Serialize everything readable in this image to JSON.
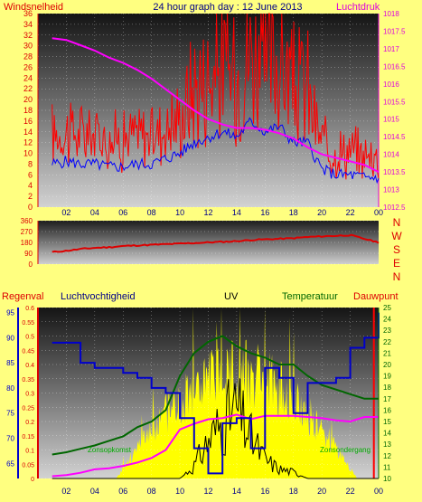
{
  "header": {
    "left_label": "Windsnelheid",
    "title": "24 hour graph day : 12 June 2013",
    "right_label": "Luchtdruk"
  },
  "colors": {
    "background": "#ffff80",
    "wind_avg": "#0000ff",
    "wind_gust": "#ff0000",
    "pressure": "#ff00ff",
    "direction": "#dd0000",
    "humidity": "#0000cc",
    "temperature": "#006600",
    "dewpoint": "#ff00ff",
    "uv": "#000000",
    "solar": "#ffff00",
    "rain": "#ff0000"
  },
  "x_ticks": [
    "02",
    "04",
    "06",
    "08",
    "10",
    "12",
    "14",
    "16",
    "18",
    "20",
    "22",
    "00"
  ],
  "wind_axis_ticks": [
    "0",
    "2",
    "4",
    "6",
    "8",
    "10",
    "12",
    "14",
    "16",
    "18",
    "20",
    "22",
    "24",
    "26",
    "28",
    "30",
    "32",
    "34",
    "36"
  ],
  "pressure_axis_ticks": [
    "1012.5",
    "1013",
    "1013.5",
    "1014",
    "1014.5",
    "1015",
    "1015.5",
    "1016",
    "1016.5",
    "1017",
    "1017.5",
    "1018"
  ],
  "direction_axis_ticks": [
    "0",
    "90",
    "180",
    "270",
    "360"
  ],
  "compass_labels": [
    "N",
    "W",
    "S",
    "E",
    "N"
  ],
  "bottom_headers": {
    "rain": "Regenval",
    "humidity": "Luchtvochtigheid",
    "uv": "UV",
    "temperature": "Temperatuur",
    "dewpoint": "Dauwpunt"
  },
  "rain_axis_ticks": [
    "0",
    "0.05",
    "0.1",
    "0.15",
    "0.2",
    "0.25",
    "0.3",
    "0.35",
    "0.4",
    "0.45",
    "0.5",
    "0.55",
    "0.6"
  ],
  "humidity_axis_ticks": [
    "65",
    "70",
    "75",
    "80",
    "85",
    "90",
    "95"
  ],
  "temperature_axis_ticks": [
    "10",
    "11",
    "12",
    "13",
    "14",
    "15",
    "16",
    "17",
    "18",
    "19",
    "20",
    "21",
    "22",
    "23",
    "24",
    "25"
  ],
  "annotations": {
    "sunrise": "Zonsopkomst",
    "sunset": "Zonsondergang"
  },
  "chart_data": [
    {
      "type": "line",
      "title": "24 hour graph day : 12 June 2013",
      "x": [
        "01",
        "02",
        "03",
        "04",
        "05",
        "06",
        "07",
        "08",
        "09",
        "10",
        "11",
        "12",
        "13",
        "14",
        "15",
        "16",
        "17",
        "18",
        "19",
        "20",
        "21",
        "22",
        "23",
        "00"
      ],
      "series": [
        {
          "name": "Windsnelheid",
          "axis": "left",
          "values": [
            8,
            8.5,
            8,
            8,
            7.5,
            7.5,
            8,
            8,
            9,
            10,
            12,
            13,
            14,
            13,
            16,
            14,
            15,
            12,
            12,
            7,
            6,
            6,
            5.5,
            5.5
          ]
        },
        {
          "name": "Luchtdruk",
          "axis": "right",
          "values": [
            1017.3,
            1017.25,
            1017.1,
            1016.95,
            1016.75,
            1016.6,
            1016.4,
            1016.15,
            1015.85,
            1015.55,
            1015.25,
            1015.0,
            1014.85,
            1014.75,
            1014.75,
            1014.7,
            1014.6,
            1014.45,
            1014.2,
            1014.0,
            1013.9,
            1013.8,
            1013.7,
            1013.5
          ]
        }
      ],
      "ylim_left": [
        0,
        36
      ],
      "ylim_right": [
        1012.5,
        1018
      ]
    },
    {
      "type": "line",
      "x": [
        "01",
        "02",
        "03",
        "04",
        "05",
        "06",
        "07",
        "08",
        "09",
        "10",
        "11",
        "12",
        "13",
        "14",
        "15",
        "16",
        "17",
        "18",
        "19",
        "20",
        "21",
        "22",
        "23",
        "00"
      ],
      "series": [
        {
          "values": [
            100,
            110,
            125,
            135,
            140,
            150,
            155,
            160,
            165,
            170,
            175,
            180,
            185,
            190,
            200,
            205,
            210,
            215,
            225,
            230,
            235,
            240,
            210,
            180
          ]
        }
      ],
      "ylim": [
        0,
        360
      ]
    },
    {
      "type": "line",
      "x": [
        "01",
        "02",
        "03",
        "04",
        "05",
        "06",
        "07",
        "08",
        "09",
        "10",
        "11",
        "12",
        "13",
        "14",
        "15",
        "16",
        "17",
        "18",
        "19",
        "20",
        "21",
        "22",
        "23",
        "00"
      ],
      "series": [
        {
          "name": "Luchtvochtigheid",
          "axis": "humidity",
          "values": [
            89,
            89,
            85,
            84,
            84,
            83,
            82,
            80,
            79,
            74,
            68,
            63,
            73,
            74,
            68,
            84,
            82,
            75,
            81,
            81,
            82,
            88,
            90,
            95
          ]
        },
        {
          "name": "Temperatuur",
          "axis": "temperature",
          "values": [
            12.1,
            12.3,
            12.6,
            12.9,
            13.3,
            13.7,
            14.5,
            15.0,
            16.0,
            19.0,
            21.0,
            22.0,
            22.5,
            21.6,
            21.0,
            20.6,
            20.0,
            20.0,
            19.0,
            18.2,
            17.8,
            17.4,
            17.0,
            17.0
          ]
        },
        {
          "name": "Dauwpunt",
          "axis": "temperature",
          "values": [
            10.2,
            10.3,
            10.5,
            10.8,
            10.9,
            11.1,
            11.4,
            11.8,
            12.5,
            14.3,
            14.8,
            15.2,
            15.3,
            15.6,
            15.2,
            15.5,
            15.5,
            15.5,
            15.4,
            15.3,
            15.1,
            15.0,
            15.4,
            15.4
          ]
        },
        {
          "name": "UV",
          "axis": "rain",
          "values": [
            0,
            0,
            0,
            0,
            0,
            0,
            0,
            0,
            0,
            0,
            0.04,
            0.12,
            0.18,
            0.22,
            0.13,
            0.06,
            0.03,
            0.02,
            0,
            0,
            0,
            0,
            0,
            0
          ]
        }
      ],
      "ylim_rain": [
        0,
        0.6
      ],
      "ylim_humidity": [
        62,
        96
      ],
      "ylim_temperature": [
        10,
        25
      ]
    }
  ]
}
